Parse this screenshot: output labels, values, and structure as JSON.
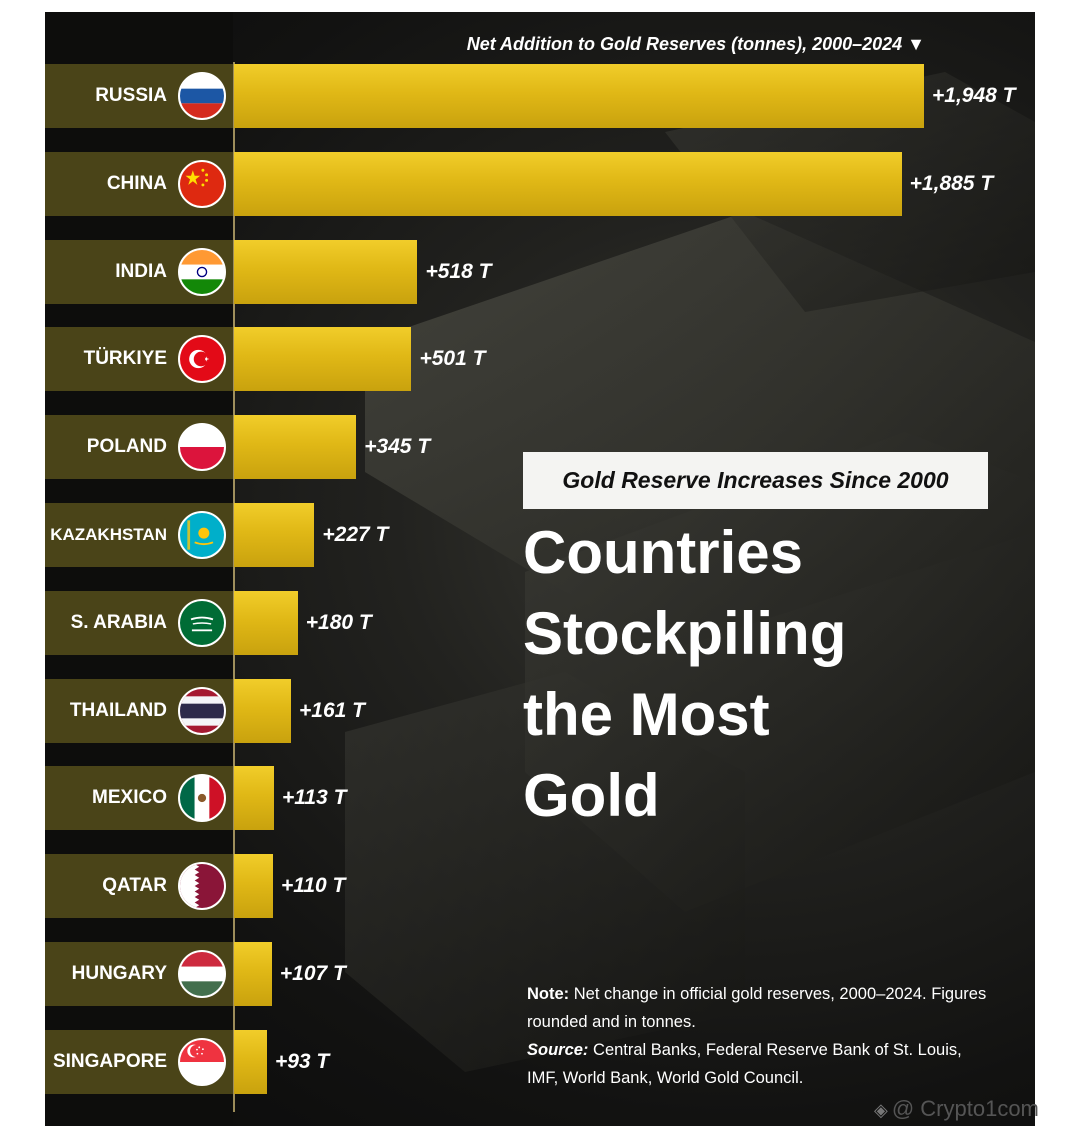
{
  "chart_data": {
    "type": "bar",
    "orientation": "horizontal",
    "title": "Net Addition to Gold Reserves (tonnes), 2000–2024 ▼",
    "categories": [
      "RUSSIA",
      "CHINA",
      "INDIA",
      "TÜRKIYE",
      "POLAND",
      "KAZAKHSTAN",
      "S. ARABIA",
      "THAILAND",
      "MEXICO",
      "QATAR",
      "HUNGARY",
      "SINGAPORE"
    ],
    "values": [
      1948,
      1885,
      518,
      501,
      345,
      227,
      180,
      161,
      113,
      110,
      107,
      93
    ],
    "value_labels": [
      "+1,948 T",
      "+1,885 T",
      "+518 T",
      "+501 T",
      "+345 T",
      "+227 T",
      "+180 T",
      "+161 T",
      "+113 T",
      "+110 T",
      "+107 T",
      "+93 T"
    ],
    "flags": [
      "russia-flag-icon",
      "china-flag-icon",
      "india-flag-icon",
      "turkiye-flag-icon",
      "poland-flag-icon",
      "kazakhstan-flag-icon",
      "saudi-arabia-flag-icon",
      "thailand-flag-icon",
      "mexico-flag-icon",
      "qatar-flag-icon",
      "hungary-flag-icon",
      "singapore-flag-icon"
    ],
    "xlim": [
      0,
      1948
    ],
    "grid": false,
    "colors": {
      "bar": "#e0b816",
      "label_bg": "#4a4418"
    }
  },
  "subtitle": "Gold Reserve Increases Since 2000",
  "headline": [
    "Countries",
    "Stockpiling",
    "the Most",
    "Gold"
  ],
  "note": {
    "note_label": "Note:",
    "note_text": " Net change in official gold reserves, 2000–2024. Figures rounded and in tonnes.",
    "source_label": "Source:",
    "source_text": " Central Banks, Federal Reserve Bank of St. Louis, IMF, World Bank, World Gold Council."
  },
  "watermark": {
    "icon": "binance-logo-icon",
    "text": "@ Crypto1com"
  }
}
